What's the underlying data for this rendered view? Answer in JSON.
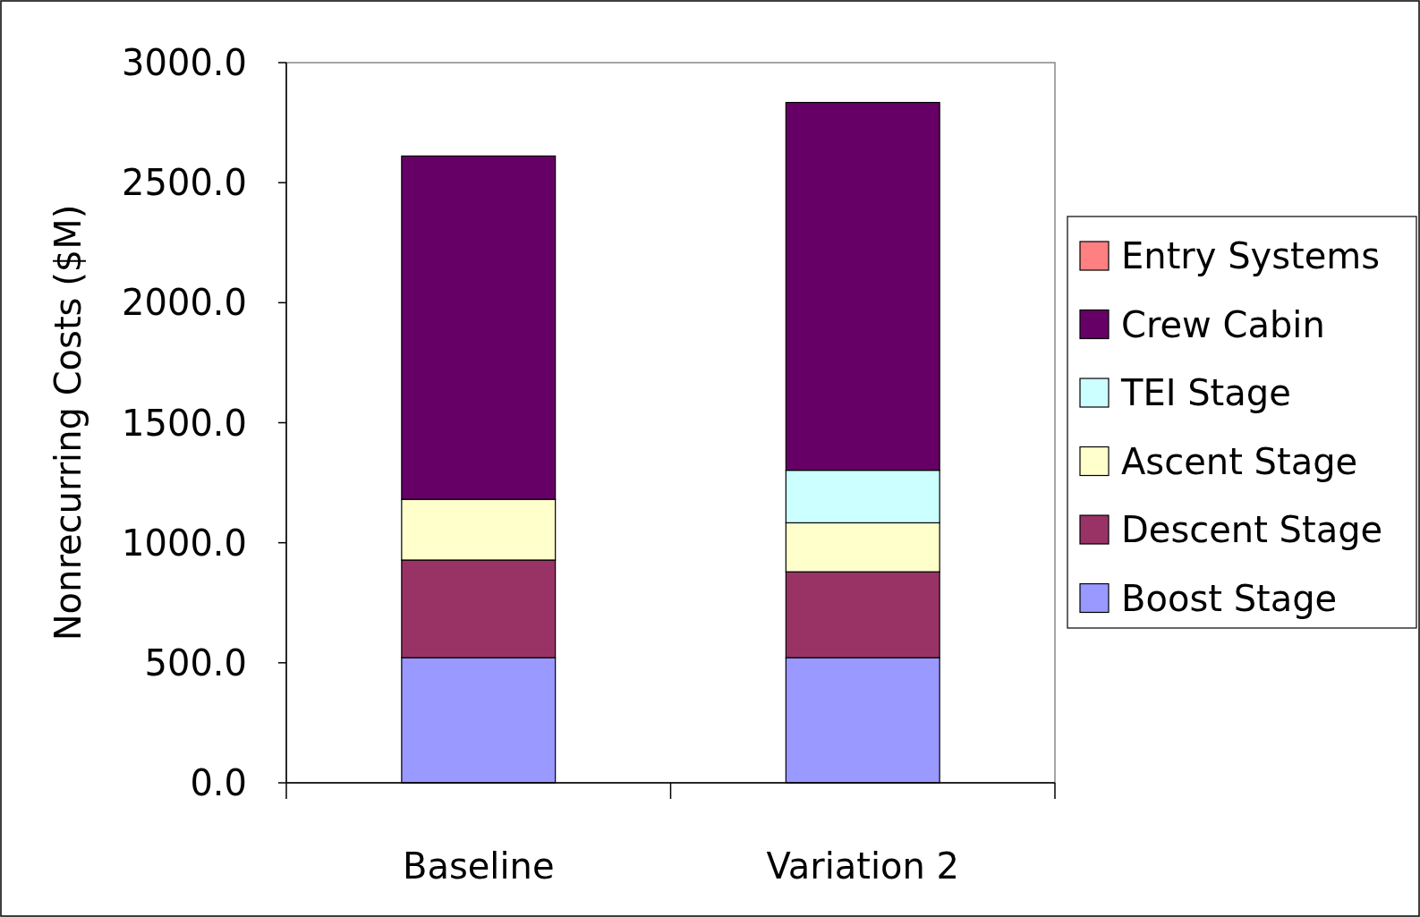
{
  "chart_data": {
    "type": "bar",
    "stacked": true,
    "ylabel": "Nonrecurring Costs ($M)",
    "categories": [
      "Baseline",
      "Variation 2"
    ],
    "series": [
      {
        "name": "Boost Stage",
        "color": "#9999ff",
        "values": [
          521,
          521
        ]
      },
      {
        "name": "Descent Stage",
        "color": "#993366",
        "values": [
          407,
          358
        ]
      },
      {
        "name": "Ascent Stage",
        "color": "#ffffcc",
        "values": [
          253,
          204
        ]
      },
      {
        "name": "TEI Stage",
        "color": "#ccffff",
        "values": [
          0,
          219
        ]
      },
      {
        "name": "Crew Cabin",
        "color": "#660066",
        "values": [
          1430,
          1532
        ]
      },
      {
        "name": "Entry Systems",
        "color": "#ff8080",
        "values": [
          0,
          0
        ]
      }
    ],
    "ylim": [
      0,
      3000
    ],
    "yticks": [
      {
        "value": 0,
        "label": "0.0"
      },
      {
        "value": 500,
        "label": "500.0"
      },
      {
        "value": 1000,
        "label": "1000.0"
      },
      {
        "value": 1500,
        "label": "1500.0"
      },
      {
        "value": 2000,
        "label": "2000.0"
      },
      {
        "value": 2500,
        "label": "2500.0"
      },
      {
        "value": 3000,
        "label": "3000.0"
      }
    ],
    "grid": false,
    "legend": "right"
  }
}
